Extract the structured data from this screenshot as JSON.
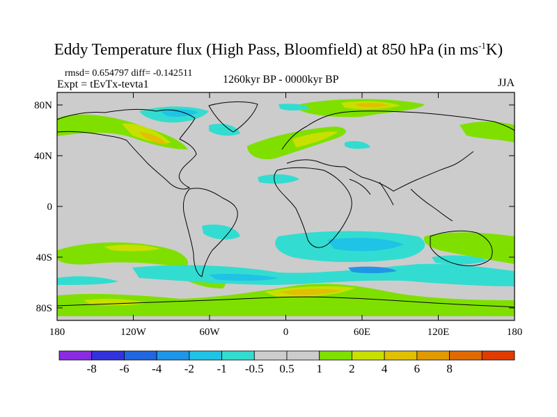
{
  "title_prefix": "Eddy Temperature flux (High Pass, Bloomfield) at 850 hPa (in ms",
  "title_sup": "-1",
  "title_suffix": "K)",
  "stats": "rmsd= 0.654797 diff= -0.142511",
  "expt": "Expt = tEvTx-tevta1",
  "period": "1260kyr BP - 0000kyr BP",
  "season": "JJA",
  "lat_ticks": [
    "80N",
    "40N",
    "0",
    "40S",
    "80S"
  ],
  "lon_ticks": [
    "180",
    "120W",
    "60W",
    "0",
    "60E",
    "120E",
    "180"
  ],
  "colorbar": {
    "colors": [
      "#8a2be2",
      "#3333dd",
      "#2066e0",
      "#1e96e8",
      "#1ec3e6",
      "#33dcd0",
      "#cccccc",
      "#cccccc",
      "#7fe000",
      "#c8e000",
      "#e0c000",
      "#e09a00",
      "#e06a00",
      "#e03c00"
    ],
    "labels": [
      "-8",
      "-6",
      "-4",
      "-2",
      "-1",
      "-0.5",
      "0.5",
      "1",
      "2",
      "4",
      "6",
      "8"
    ]
  },
  "map_colors": {
    "ocean": "#cccccc",
    "pos1": "#7fe000",
    "pos2": "#c8e000",
    "pos4": "#e0c000",
    "neg1": "#33dcd0",
    "neg2": "#1ec3e6",
    "neg4": "#1e96e8"
  }
}
